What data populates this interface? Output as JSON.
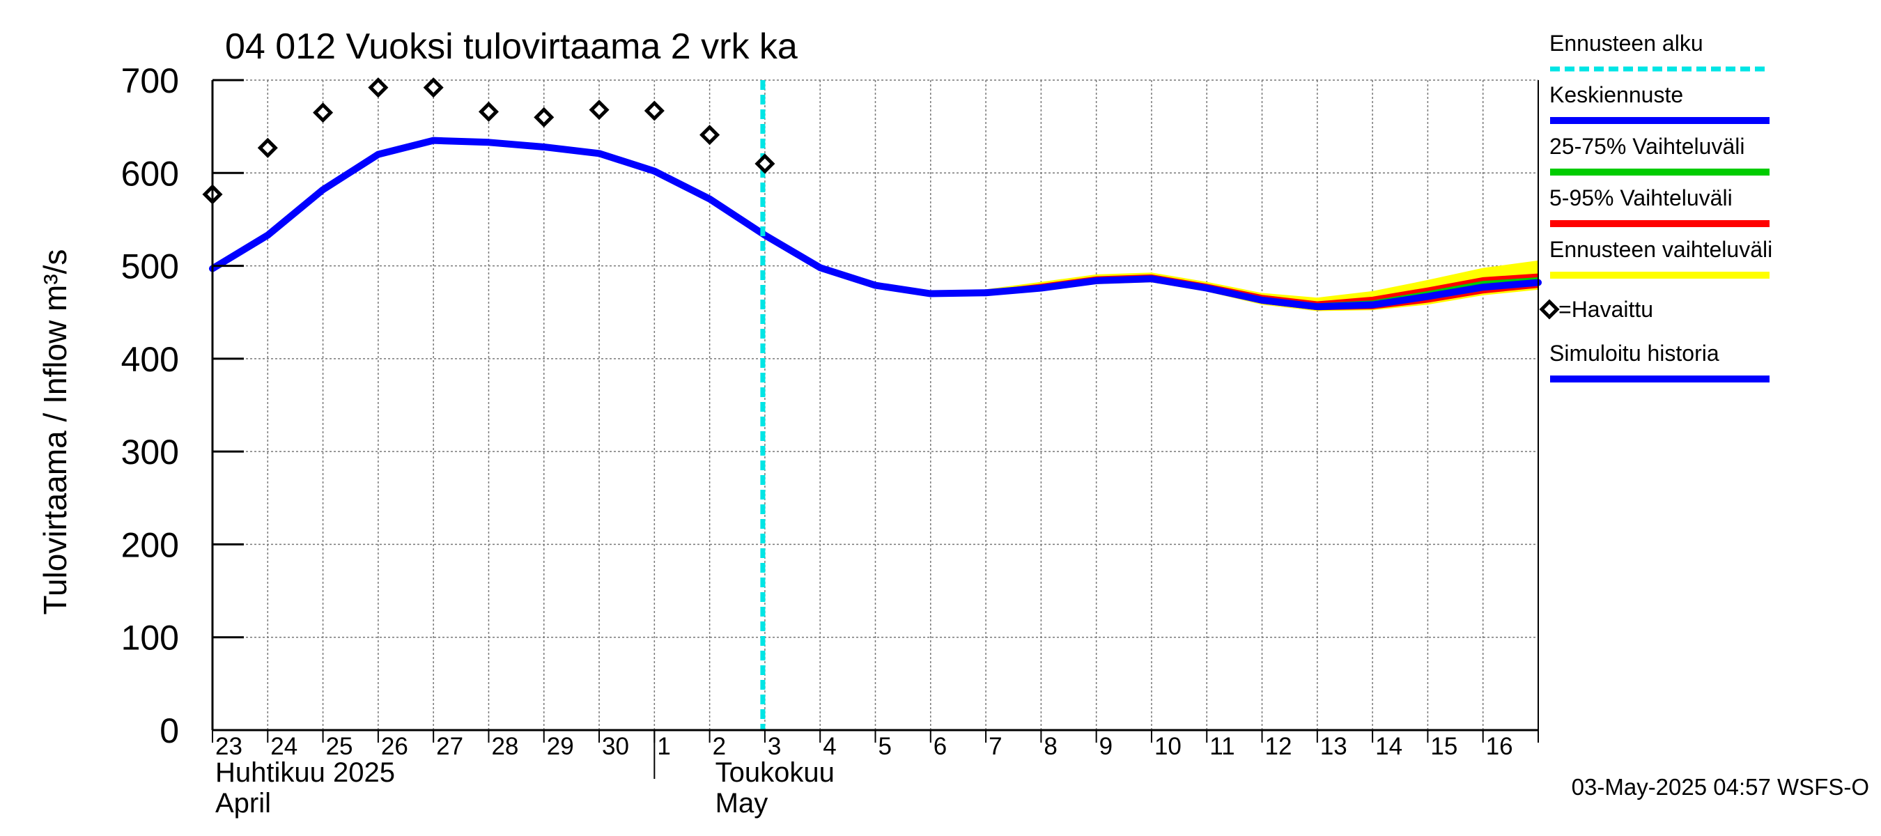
{
  "chart_data": {
    "type": "line",
    "title": "04 012 Vuoksi tulovirtaama 2 vrk ka",
    "ylabel": "Tulovirtaama / Inflow   m³/s",
    "ylim": [
      0,
      700
    ],
    "yticks": [
      0,
      100,
      200,
      300,
      400,
      500,
      600,
      700
    ],
    "grid": true,
    "x_day_labels": [
      "23",
      "24",
      "25",
      "26",
      "27",
      "28",
      "29",
      "30",
      "1",
      "2",
      "3",
      "4",
      "5",
      "6",
      "7",
      "8",
      "9",
      "10",
      "11",
      "12",
      "13",
      "14",
      "15",
      "16"
    ],
    "month_labels": [
      {
        "line1": "Huhtikuu  2025",
        "line2": "April"
      },
      {
        "line1": "Toukokuu",
        "line2": "May"
      }
    ],
    "forecast_start_day_index": 10,
    "simulated_history": {
      "name": "Simuloitu historia",
      "x": [
        0,
        1,
        2,
        3,
        4,
        5,
        6,
        7,
        8,
        9,
        10,
        11,
        12,
        13,
        14
      ],
      "values": [
        497,
        533,
        582,
        620,
        635,
        633,
        628,
        621,
        602,
        572,
        533,
        498,
        479,
        470,
        471
      ]
    },
    "median_forecast": {
      "name": "Keskiennuste",
      "x": [
        14,
        15,
        16,
        17,
        18,
        19,
        20,
        21,
        22,
        23,
        24
      ],
      "values": [
        471,
        476,
        484,
        486,
        476,
        463,
        456,
        458,
        467,
        477,
        482
      ]
    },
    "band_25_75": {
      "name": "25-75% Vaihteluväli",
      "x": [
        14,
        15,
        16,
        17,
        18,
        19,
        20,
        21,
        22,
        23,
        24
      ],
      "lower": [
        471,
        475,
        483,
        485,
        475,
        462,
        455,
        456,
        464,
        474,
        480
      ],
      "upper": [
        472,
        478,
        486,
        488,
        478,
        466,
        459,
        462,
        472,
        483,
        487
      ]
    },
    "band_5_95": {
      "name": "5-95% Vaihteluväli",
      "x": [
        14,
        15,
        16,
        17,
        18,
        19,
        20,
        21,
        22,
        23,
        24
      ],
      "lower": [
        470,
        474,
        482,
        484,
        474,
        460,
        453,
        454,
        461,
        471,
        477
      ],
      "upper": [
        473,
        480,
        488,
        490,
        480,
        468,
        461,
        466,
        476,
        487,
        491
      ]
    },
    "band_full": {
      "name": "Ennusteen vaihteluväli",
      "x": [
        14,
        15,
        16,
        17,
        18,
        19,
        20,
        21,
        22,
        23,
        24
      ],
      "lower": [
        470,
        474,
        481,
        483,
        473,
        459,
        452,
        453,
        459,
        469,
        475
      ],
      "upper": [
        474,
        482,
        490,
        492,
        482,
        470,
        465,
        472,
        484,
        497,
        505
      ]
    },
    "observed": {
      "name": "=Havaittu",
      "x": [
        0,
        1,
        2,
        3,
        4,
        5,
        6,
        7,
        8,
        9,
        10
      ],
      "values": [
        577,
        627,
        665,
        692,
        692,
        666,
        660,
        668,
        667,
        641,
        610
      ]
    },
    "legend": [
      {
        "key": "forecast_start",
        "label": "Ennusteen alku",
        "color": "#00e5e5",
        "style": "dashed"
      },
      {
        "key": "median",
        "label": "Keskiennuste",
        "color": "#0000ff",
        "style": "solid"
      },
      {
        "key": "band_25_75",
        "label": "25-75% Vaihteluväli",
        "color": "#00cc00",
        "style": "solid"
      },
      {
        "key": "band_5_95",
        "label": "5-95% Vaihteluväli",
        "color": "#ff0000",
        "style": "solid"
      },
      {
        "key": "band_full",
        "label": "Ennusteen vaihteluväli",
        "color": "#ffff00",
        "style": "solid"
      },
      {
        "key": "observed",
        "label": "=Havaittu",
        "color": "#000000",
        "style": "marker"
      },
      {
        "key": "history",
        "label": "Simuloitu historia",
        "color": "#0000ff",
        "style": "solid"
      }
    ],
    "timestamp": "03-May-2025 04:57 WSFS-O"
  }
}
